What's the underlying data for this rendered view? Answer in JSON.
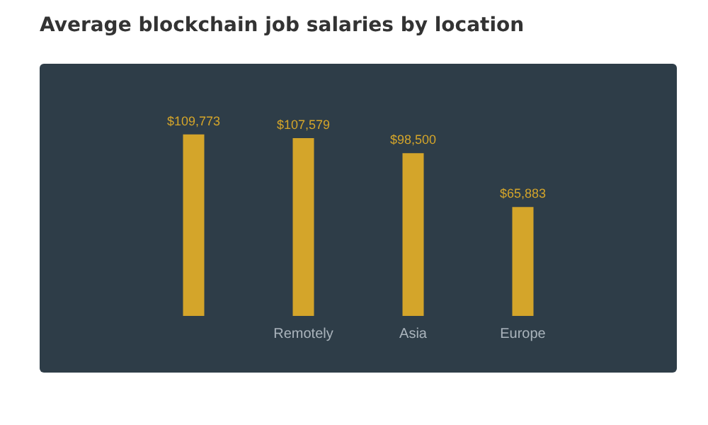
{
  "chart_data": {
    "type": "bar",
    "title": "Average blockchain job salaries by location",
    "categories": [
      null,
      "Remotely",
      "Asia",
      "Europe"
    ],
    "values": [
      109773,
      107579,
      98500,
      65883
    ],
    "value_labels": [
      "$109,773",
      "$107,579",
      "$98,500",
      "$65,883"
    ],
    "color": "#d4a52a"
  }
}
